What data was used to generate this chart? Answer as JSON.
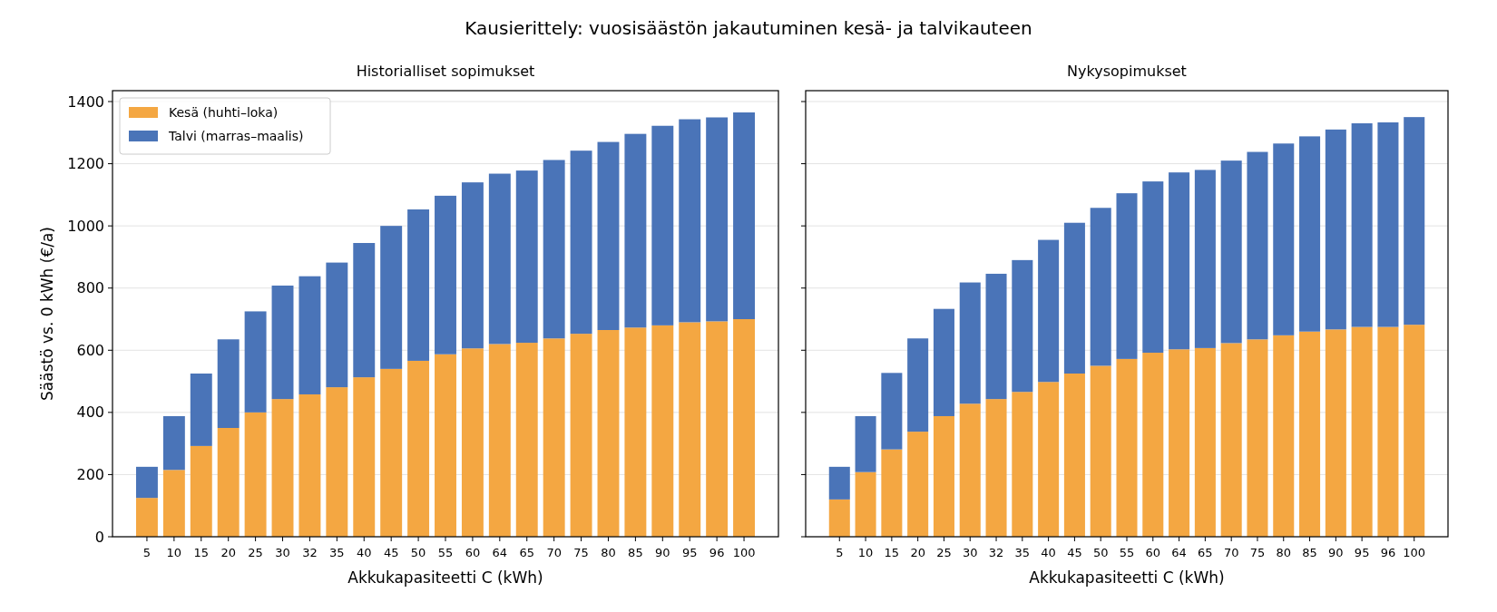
{
  "chart_data": [
    {
      "type": "bar",
      "title": "Historialliset sopimukset",
      "annotations": [
        "Kausierittely: vuosisäästön jakautuminen kesä- ja talvikauteen"
      ],
      "xlabel": "Akkukapasiteetti C (kWh)",
      "ylabel": "Säästö vs. 0 kWh (€/a)",
      "categories": [
        "5",
        "10",
        "15",
        "20",
        "25",
        "30",
        "32",
        "35",
        "40",
        "45",
        "50",
        "55",
        "60",
        "64",
        "65",
        "70",
        "75",
        "80",
        "85",
        "90",
        "95",
        "96",
        "100"
      ],
      "stacked": true,
      "ylim": [
        0,
        1435
      ],
      "yticks": [
        0,
        200,
        400,
        600,
        800,
        1000,
        1200,
        1400
      ],
      "grid": "y",
      "legend": "top left",
      "series": [
        {
          "name": "Kesä (huhti–loka)",
          "color": "#f4a742",
          "values": [
            125,
            215,
            292,
            350,
            400,
            443,
            458,
            481,
            513,
            540,
            566,
            587,
            606,
            620,
            624,
            638,
            653,
            665,
            673,
            680,
            690,
            693,
            700
          ]
        },
        {
          "name": "Talvi (marras–maalis)",
          "color": "#4a74b8",
          "values": [
            100,
            173,
            233,
            285,
            325,
            365,
            380,
            401,
            432,
            460,
            487,
            510,
            534,
            548,
            554,
            574,
            589,
            605,
            623,
            642,
            653,
            656,
            665
          ]
        }
      ]
    },
    {
      "type": "bar",
      "title": "Nykysopimukset",
      "xlabel": "Akkukapasiteetti C (kWh)",
      "categories": [
        "5",
        "10",
        "15",
        "20",
        "25",
        "30",
        "32",
        "35",
        "40",
        "45",
        "50",
        "55",
        "60",
        "64",
        "65",
        "70",
        "75",
        "80",
        "85",
        "90",
        "95",
        "96",
        "100"
      ],
      "stacked": true,
      "ylim": [
        0,
        1435
      ],
      "yticks": [
        0,
        200,
        400,
        600,
        800,
        1000,
        1200,
        1400
      ],
      "grid": "y",
      "tick_labels": "x",
      "series": [
        {
          "color": "#f4a742",
          "values": [
            120,
            208,
            281,
            338,
            388,
            428,
            443,
            466,
            498,
            525,
            550,
            572,
            592,
            603,
            607,
            623,
            635,
            648,
            660,
            667,
            675,
            675,
            682
          ]
        },
        {
          "color": "#4a74b8",
          "values": [
            105,
            180,
            246,
            300,
            345,
            390,
            403,
            424,
            457,
            485,
            508,
            533,
            551,
            569,
            573,
            587,
            603,
            617,
            628,
            643,
            655,
            658,
            668
          ]
        }
      ]
    }
  ]
}
